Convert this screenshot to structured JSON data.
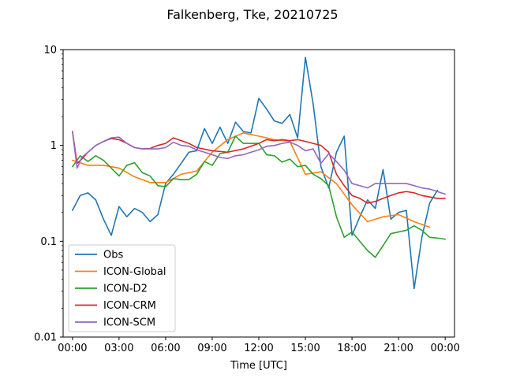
{
  "chart_data": {
    "type": "line",
    "title": "Falkenberg, Tke, 20210725",
    "xlabel": "Time [UTC]",
    "ylabel": "",
    "xlim": [
      -0.6,
      24.6
    ],
    "ylim": [
      0.01,
      10
    ],
    "yscale": "log",
    "x_ticks": [
      0,
      3,
      6,
      9,
      12,
      15,
      18,
      21,
      24
    ],
    "x_tick_labels": [
      "00:00",
      "03:00",
      "06:00",
      "09:00",
      "12:00",
      "15:00",
      "18:00",
      "21:00",
      "00:00"
    ],
    "y_ticks": [
      0.01,
      0.1,
      1,
      10
    ],
    "y_tick_labels": [
      "0.01",
      "0.1",
      "1",
      "10"
    ],
    "grid": false,
    "legend_position": "lower-left",
    "series": [
      {
        "name": "Obs",
        "color": "#1f77b4",
        "x": [
          0.0,
          0.5,
          1.0,
          1.5,
          2.0,
          2.5,
          3.0,
          3.5,
          4.0,
          4.5,
          5.0,
          5.5,
          6.0,
          6.5,
          7.0,
          7.5,
          8.0,
          8.5,
          9.0,
          9.5,
          10.0,
          10.5,
          11.0,
          11.5,
          12.0,
          12.5,
          13.0,
          13.5,
          14.0,
          14.5,
          15.0,
          15.5,
          16.0,
          16.5,
          17.0,
          17.5,
          18.0,
          18.5,
          19.0,
          19.5,
          20.0,
          20.5,
          21.0,
          21.5,
          22.0,
          22.5,
          23.0,
          23.5
        ],
        "y": [
          0.21,
          0.3,
          0.32,
          0.27,
          0.17,
          0.115,
          0.23,
          0.18,
          0.22,
          0.2,
          0.16,
          0.19,
          0.4,
          0.5,
          0.65,
          0.85,
          0.88,
          1.5,
          1.05,
          1.55,
          1.05,
          1.75,
          1.4,
          1.35,
          3.1,
          2.4,
          1.8,
          1.7,
          2.1,
          1.2,
          8.3,
          2.7,
          0.6,
          0.36,
          0.85,
          1.25,
          0.115,
          0.18,
          0.27,
          0.22,
          0.56,
          0.17,
          0.2,
          0.21,
          0.032,
          0.11,
          0.25,
          0.34
        ]
      },
      {
        "name": "ICON-Global",
        "color": "#ff7f0e",
        "x": [
          0.0,
          1.0,
          2.0,
          3.0,
          4.0,
          5.0,
          6.0,
          7.0,
          8.0,
          9.0,
          10.0,
          11.0,
          12.0,
          13.0,
          14.0,
          15.0,
          16.0,
          17.0,
          18.0,
          19.0,
          20.0,
          21.0,
          22.0,
          23.0
        ],
        "y": [
          0.7,
          0.62,
          0.62,
          0.58,
          0.47,
          0.41,
          0.41,
          0.5,
          0.54,
          0.85,
          1.15,
          1.35,
          1.25,
          1.15,
          1.1,
          0.5,
          0.53,
          0.4,
          0.24,
          0.16,
          0.18,
          0.19,
          0.16,
          0.14
        ]
      },
      {
        "name": "ICON-D2",
        "color": "#2ca02c",
        "x": [
          0.0,
          0.5,
          1.0,
          1.5,
          2.0,
          2.5,
          3.0,
          3.5,
          4.0,
          4.5,
          5.0,
          5.5,
          6.0,
          6.5,
          7.0,
          7.5,
          8.0,
          8.5,
          9.0,
          9.5,
          10.0,
          10.5,
          11.0,
          11.5,
          12.0,
          12.5,
          13.0,
          13.5,
          14.0,
          14.5,
          15.0,
          15.5,
          16.0,
          16.5,
          17.0,
          17.5,
          18.0,
          18.5,
          19.0,
          19.5,
          20.0,
          20.5,
          21.0,
          21.5,
          22.0,
          22.5,
          23.0,
          23.5,
          24.0
        ],
        "y": [
          0.6,
          0.78,
          0.68,
          0.78,
          0.7,
          0.58,
          0.48,
          0.62,
          0.66,
          0.52,
          0.48,
          0.38,
          0.37,
          0.45,
          0.44,
          0.44,
          0.5,
          0.68,
          0.62,
          0.82,
          0.85,
          1.25,
          1.05,
          1.05,
          1.05,
          0.8,
          0.78,
          0.67,
          0.72,
          0.6,
          0.62,
          0.5,
          0.45,
          0.38,
          0.18,
          0.11,
          0.125,
          0.1,
          0.08,
          0.068,
          0.09,
          0.12,
          0.125,
          0.13,
          0.145,
          0.13,
          0.11,
          0.108,
          0.105
        ]
      },
      {
        "name": "ICON-CRM",
        "color": "#d62728",
        "x": [
          0.0,
          0.3,
          0.6,
          1.0,
          1.5,
          2.0,
          2.5,
          3.0,
          3.5,
          4.0,
          4.5,
          5.0,
          5.5,
          6.0,
          6.5,
          7.0,
          7.5,
          8.0,
          9.0,
          10.0,
          11.0,
          12.0,
          12.5,
          13.0,
          13.5,
          14.0,
          14.5,
          15.0,
          15.5,
          16.0,
          16.5,
          17.0,
          17.5,
          18.0,
          18.5,
          19.0,
          19.5,
          20.0,
          20.5,
          21.0,
          21.5,
          22.0,
          22.5,
          23.0,
          23.5,
          24.0
        ],
        "y": [
          1.4,
          0.65,
          0.72,
          0.85,
          1.0,
          1.1,
          1.18,
          1.15,
          1.05,
          0.95,
          0.92,
          0.93,
          1.0,
          1.05,
          1.2,
          1.12,
          1.05,
          0.95,
          0.88,
          0.85,
          0.92,
          1.05,
          1.15,
          1.12,
          1.15,
          1.12,
          1.15,
          1.1,
          1.05,
          1.0,
          0.85,
          0.5,
          0.38,
          0.3,
          0.28,
          0.25,
          0.26,
          0.28,
          0.3,
          0.32,
          0.33,
          0.32,
          0.3,
          0.29,
          0.28,
          0.28
        ]
      },
      {
        "name": "ICON-SCM",
        "color": "#9467bd",
        "x": [
          0.0,
          0.3,
          0.6,
          1.0,
          1.5,
          2.0,
          2.5,
          3.0,
          3.5,
          4.0,
          4.5,
          5.0,
          5.5,
          6.0,
          6.5,
          7.0,
          7.5,
          8.0,
          8.5,
          9.0,
          9.5,
          10.0,
          10.5,
          11.0,
          11.5,
          12.0,
          12.5,
          13.0,
          13.5,
          14.0,
          14.5,
          15.0,
          15.5,
          16.0,
          16.5,
          17.0,
          17.5,
          18.0,
          18.5,
          19.0,
          19.5,
          20.0,
          20.5,
          21.0,
          21.5,
          22.0,
          22.5,
          23.0,
          23.5,
          24.0
        ],
        "y": [
          1.4,
          0.58,
          0.75,
          0.85,
          1.0,
          1.1,
          1.2,
          1.22,
          1.05,
          0.95,
          0.92,
          0.92,
          0.92,
          0.95,
          1.08,
          1.0,
          0.98,
          0.9,
          0.85,
          0.8,
          0.75,
          0.73,
          0.78,
          0.8,
          0.85,
          0.9,
          0.98,
          1.0,
          1.05,
          1.08,
          1.0,
          0.88,
          0.92,
          0.65,
          0.82,
          0.68,
          0.55,
          0.4,
          0.38,
          0.36,
          0.4,
          0.4,
          0.4,
          0.4,
          0.4,
          0.38,
          0.36,
          0.35,
          0.33,
          0.31
        ]
      }
    ]
  }
}
